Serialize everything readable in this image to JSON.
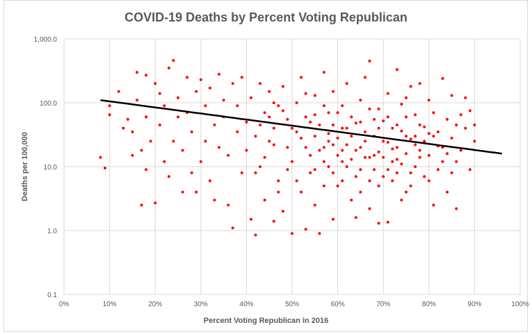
{
  "chart_data": {
    "type": "scatter",
    "title": "COVID-19 Deaths by Percent Voting Republican",
    "xlabel": "Percent Voting Republican in 2016",
    "ylabel": "Deaths per 100,000",
    "x_range": [
      0,
      100
    ],
    "y_range": [
      0.1,
      1000
    ],
    "y_scale": "log",
    "x_ticks": [
      "0%",
      "10%",
      "20%",
      "30%",
      "40%",
      "50%",
      "60%",
      "70%",
      "80%",
      "90%",
      "100%"
    ],
    "y_ticks": [
      "0.1",
      "1.0",
      "10.0",
      "100.0",
      "1,000.0"
    ],
    "grid": true,
    "legend": "none",
    "point_color": "#ff0000",
    "trendline_color": "#000000",
    "trendline": {
      "type": "exponential",
      "points": [
        [
          8,
          110
        ],
        [
          96,
          16
        ]
      ]
    },
    "points": [
      [
        8,
        14
      ],
      [
        9,
        9.5
      ],
      [
        10,
        90
      ],
      [
        10,
        65
      ],
      [
        12,
        150
      ],
      [
        13,
        40
      ],
      [
        14,
        55
      ],
      [
        15,
        15
      ],
      [
        15,
        35
      ],
      [
        16,
        300
      ],
      [
        16,
        110
      ],
      [
        17,
        18
      ],
      [
        17,
        2.5
      ],
      [
        18,
        270
      ],
      [
        18,
        9
      ],
      [
        18,
        60
      ],
      [
        19,
        25
      ],
      [
        20,
        2.7
      ],
      [
        20,
        200
      ],
      [
        21,
        140
      ],
      [
        21,
        45
      ],
      [
        22,
        12
      ],
      [
        22,
        90
      ],
      [
        23,
        350
      ],
      [
        23,
        7
      ],
      [
        24,
        460
      ],
      [
        24,
        25
      ],
      [
        25,
        120
      ],
      [
        25,
        60
      ],
      [
        26,
        4
      ],
      [
        26,
        18
      ],
      [
        27,
        250
      ],
      [
        27,
        70
      ],
      [
        28,
        8
      ],
      [
        28,
        35
      ],
      [
        29,
        150
      ],
      [
        29,
        4
      ],
      [
        30,
        230
      ],
      [
        30,
        12
      ],
      [
        31,
        90
      ],
      [
        31,
        25
      ],
      [
        32,
        6
      ],
      [
        32,
        170
      ],
      [
        33,
        45
      ],
      [
        33,
        3
      ],
      [
        34,
        280
      ],
      [
        34,
        20
      ],
      [
        35,
        110
      ],
      [
        35,
        60
      ],
      [
        36,
        2.5
      ],
      [
        36,
        15
      ],
      [
        37,
        200
      ],
      [
        37,
        1.1
      ],
      [
        38,
        35
      ],
      [
        38,
        90
      ],
      [
        39,
        8
      ],
      [
        39,
        250
      ],
      [
        40,
        50
      ],
      [
        40,
        18
      ],
      [
        41,
        1.5
      ],
      [
        41,
        120
      ],
      [
        42,
        0.85
      ],
      [
        42,
        30
      ],
      [
        43,
        200
      ],
      [
        43,
        10
      ],
      [
        44,
        70
      ],
      [
        44,
        3
      ],
      [
        45,
        150
      ],
      [
        45,
        25
      ],
      [
        46,
        1.4
      ],
      [
        46,
        40
      ],
      [
        47,
        90
      ],
      [
        47,
        6
      ],
      [
        48,
        2
      ],
      [
        48,
        180
      ],
      [
        49,
        20
      ],
      [
        49,
        55
      ],
      [
        50,
        0.9
      ],
      [
        50,
        12
      ],
      [
        51,
        100
      ],
      [
        51,
        35
      ],
      [
        52,
        4
      ],
      [
        52,
        250
      ],
      [
        53,
        1.05
      ],
      [
        53,
        60
      ],
      [
        54,
        15
      ],
      [
        54,
        8
      ],
      [
        55,
        130
      ],
      [
        55,
        2.5
      ],
      [
        56,
        0.9
      ],
      [
        56,
        45
      ],
      [
        57,
        20
      ],
      [
        57,
        300
      ],
      [
        58,
        10
      ],
      [
        58,
        70
      ],
      [
        59,
        1.5
      ],
      [
        59,
        150
      ],
      [
        60,
        28
      ],
      [
        60,
        5
      ],
      [
        61,
        90
      ],
      [
        61,
        12
      ],
      [
        62,
        200
      ],
      [
        62,
        40
      ],
      [
        63,
        3
      ],
      [
        63,
        60
      ],
      [
        64,
        18
      ],
      [
        64,
        1.6
      ],
      [
        65,
        110
      ],
      [
        65,
        9
      ],
      [
        66,
        35
      ],
      [
        66,
        250
      ],
      [
        67,
        2.2
      ],
      [
        67,
        450
      ],
      [
        68,
        15
      ],
      [
        68,
        55
      ],
      [
        69,
        1.3
      ],
      [
        69,
        80
      ],
      [
        70,
        25
      ],
      [
        70,
        7
      ],
      [
        71,
        140
      ],
      [
        71,
        1.35
      ],
      [
        72,
        40
      ],
      [
        72,
        12
      ],
      [
        73,
        330
      ],
      [
        73,
        20
      ],
      [
        74,
        3
      ],
      [
        74,
        95
      ],
      [
        75,
        16
      ],
      [
        75,
        60
      ],
      [
        76,
        5
      ],
      [
        76,
        180
      ],
      [
        77,
        30
      ],
      [
        77,
        10
      ],
      [
        78,
        200
      ],
      [
        78,
        45
      ],
      [
        79,
        7
      ],
      [
        79,
        25
      ],
      [
        80,
        110
      ],
      [
        80,
        15
      ],
      [
        81,
        2.5
      ],
      [
        81,
        70
      ],
      [
        82,
        35
      ],
      [
        82,
        9
      ],
      [
        83,
        240
      ],
      [
        83,
        20
      ],
      [
        84,
        55
      ],
      [
        84,
        4
      ],
      [
        85,
        130
      ],
      [
        85,
        28
      ],
      [
        86,
        12
      ],
      [
        86,
        2.2
      ],
      [
        87,
        65
      ],
      [
        87,
        18
      ],
      [
        88,
        120
      ],
      [
        88,
        40
      ],
      [
        89,
        9
      ],
      [
        89,
        75
      ],
      [
        90,
        45
      ],
      [
        90,
        25
      ],
      [
        45,
        60
      ],
      [
        46,
        22
      ],
      [
        48,
        75
      ],
      [
        50,
        40
      ],
      [
        52,
        28
      ],
      [
        54,
        50
      ],
      [
        56,
        18
      ],
      [
        58,
        33
      ],
      [
        60,
        70
      ],
      [
        62,
        22
      ],
      [
        64,
        48
      ],
      [
        66,
        14
      ],
      [
        68,
        30
      ],
      [
        70,
        52
      ],
      [
        72,
        19
      ],
      [
        74,
        36
      ],
      [
        76,
        27
      ],
      [
        78,
        14
      ],
      [
        80,
        33
      ],
      [
        82,
        21
      ],
      [
        84,
        16
      ],
      [
        58,
        25
      ],
      [
        60,
        15
      ],
      [
        62,
        10
      ],
      [
        64,
        7
      ],
      [
        66,
        25
      ],
      [
        68,
        9
      ],
      [
        70,
        14
      ],
      [
        72,
        6
      ],
      [
        74,
        11
      ],
      [
        76,
        8
      ],
      [
        78,
        18
      ],
      [
        80,
        6
      ],
      [
        55,
        30
      ],
      [
        57,
        12
      ],
      [
        59,
        8
      ],
      [
        61,
        40
      ],
      [
        63,
        13
      ],
      [
        65,
        20
      ],
      [
        67,
        6
      ],
      [
        69,
        17
      ],
      [
        71,
        9
      ],
      [
        73,
        13
      ],
      [
        75,
        4
      ],
      [
        77,
        22
      ],
      [
        65,
        50
      ],
      [
        67,
        80
      ],
      [
        69,
        40
      ],
      [
        71,
        60
      ],
      [
        73,
        45
      ],
      [
        75,
        120
      ],
      [
        77,
        65
      ],
      [
        79,
        42
      ],
      [
        81,
        30
      ],
      [
        83,
        12
      ],
      [
        85,
        8
      ],
      [
        86,
        45
      ],
      [
        53,
        20
      ],
      [
        55,
        9
      ],
      [
        57,
        5
      ],
      [
        59,
        22
      ],
      [
        61,
        6
      ],
      [
        63,
        30
      ],
      [
        65,
        4
      ],
      [
        67,
        14
      ],
      [
        69,
        5
      ],
      [
        71,
        24
      ],
      [
        73,
        8
      ],
      [
        75,
        30
      ],
      [
        42,
        8
      ],
      [
        43,
        45
      ],
      [
        44,
        14
      ],
      [
        46,
        100
      ],
      [
        47,
        4
      ],
      [
        49,
        9
      ],
      [
        51,
        6
      ],
      [
        53,
        140
      ],
      [
        55,
        65
      ],
      [
        57,
        90
      ],
      [
        59,
        45
      ],
      [
        61,
        18
      ]
    ]
  }
}
